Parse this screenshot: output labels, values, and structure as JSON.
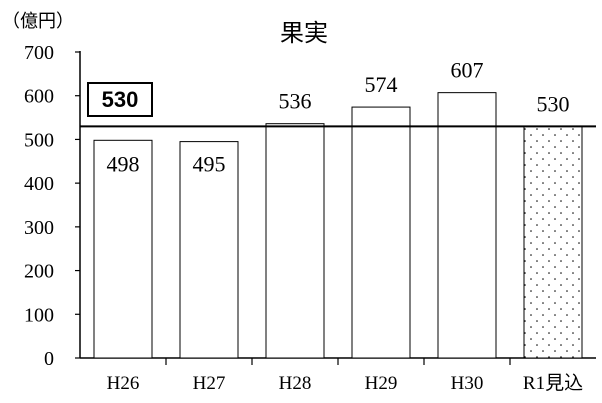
{
  "chart_data": {
    "type": "bar",
    "title": "果実",
    "ylabel": "（億円）",
    "xlabel": "",
    "ylim": [
      0,
      700
    ],
    "yticks": [
      0,
      100,
      200,
      300,
      400,
      500,
      600,
      700
    ],
    "categories": [
      "H26",
      "H27",
      "H28",
      "H29",
      "H30",
      "R1見込"
    ],
    "values": [
      498,
      495,
      536,
      574,
      607,
      530
    ],
    "value_labels": [
      "498",
      "495",
      "536",
      "574",
      "607",
      "530"
    ],
    "reference_line": {
      "value": 530,
      "label": "530"
    },
    "projected_category": "R1見込",
    "grid": false,
    "legend": "none"
  },
  "colors": {
    "bar_fill": "#ffffff",
    "bar_stroke": "#000000",
    "projected_pattern_dot": "#000000",
    "axis": "#000000",
    "text": "#000000"
  }
}
